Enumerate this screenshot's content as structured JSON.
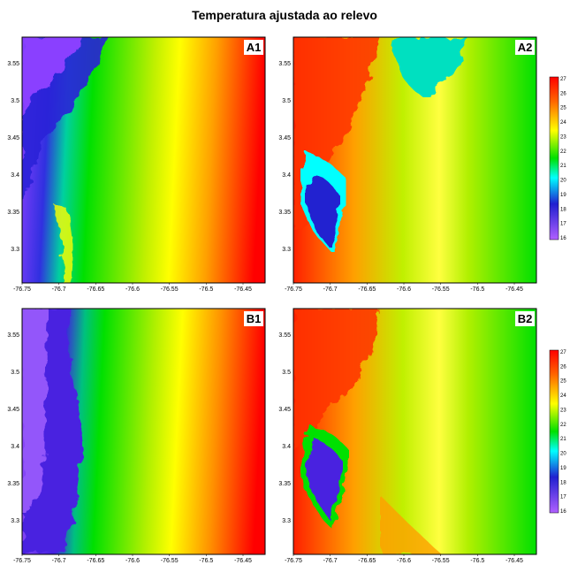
{
  "title": "Temperatura ajustada ao relevo",
  "x_ticks": [
    "-76.75",
    "-76.7",
    "-76.65",
    "-76.6",
    "-76.55",
    "-76.5",
    "-76.45"
  ],
  "y_ticks": [
    "3.55",
    "3.5",
    "3.45",
    "3.4",
    "3.35",
    "3.3"
  ],
  "panels": [
    {
      "label": "A1",
      "scheme": "gradient"
    },
    {
      "label": "A2",
      "scheme": "relief"
    },
    {
      "label": "B1",
      "scheme": "gradient"
    },
    {
      "label": "B2",
      "scheme": "relief"
    }
  ],
  "colorbar_top": {
    "labels": [
      "27",
      "26",
      "25",
      "24",
      "23",
      "22",
      "21",
      "20",
      "19",
      "18",
      "17",
      "16"
    ]
  },
  "colorbar_bottom": {
    "labels": [
      "27",
      "26",
      "25",
      "24",
      "23",
      "22",
      "21",
      "20",
      "19",
      "18",
      "17",
      "16"
    ]
  },
  "colors": {
    "red": "#ff0000",
    "orange": "#ff8c00",
    "yellow": "#ffff00",
    "green": "#00e000",
    "cyan": "#00ffff",
    "blue": "#2020d0",
    "violet": "#9a40ff"
  }
}
